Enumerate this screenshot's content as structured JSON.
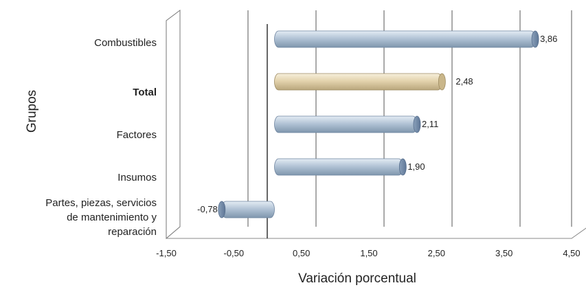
{
  "chart_data": {
    "type": "bar",
    "orientation": "horizontal",
    "style": "3d-cylinder",
    "xlabel": "Variación porcentual",
    "ylabel": "Grupos",
    "xlim": [
      -1.5,
      4.5
    ],
    "xticks": [
      -1.5,
      -0.5,
      0.5,
      1.5,
      2.5,
      3.5,
      4.5
    ],
    "xtick_labels": [
      "-1,50",
      "-0,50",
      "0,50",
      "1,50",
      "2,50",
      "3,50",
      "4,50"
    ],
    "gridlines": "vertical",
    "legend": "none",
    "categories": [
      "Combustibles",
      "Total",
      "Factores",
      "Insumos",
      "Partes, piezas, servicios\nde mantenimiento y\nreparación"
    ],
    "bold_categories": [
      "Total"
    ],
    "values": [
      3.86,
      2.48,
      2.11,
      1.9,
      -0.78
    ],
    "value_labels": [
      "3,86",
      "2,48",
      "2,11",
      "1,90",
      "-0,78"
    ],
    "bar_colors": [
      "#a9bccf",
      "#e3d3ad",
      "#a9bccf",
      "#a9bccf",
      "#a9bccf"
    ],
    "highlight_color": "#e3d3ad",
    "series_color": "#a9bccf"
  }
}
